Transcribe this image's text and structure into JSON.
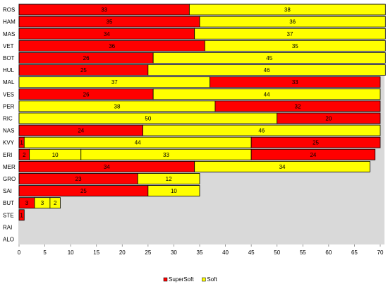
{
  "chart_data": {
    "type": "bar",
    "orientation": "horizontal",
    "stacked": true,
    "title": "",
    "xlabel": "",
    "ylabel": "",
    "xlim": [
      0,
      70
    ],
    "x_ticks": [
      0,
      5,
      10,
      15,
      20,
      25,
      30,
      35,
      40,
      45,
      50,
      55,
      60,
      65,
      70
    ],
    "grid": false,
    "legend_position": "bottom",
    "legend": [
      {
        "name": "SuperSoft",
        "color": "#ff0000"
      },
      {
        "name": "Soft",
        "color": "#ffff00"
      }
    ],
    "drivers": [
      {
        "name": "ROS",
        "stints": [
          {
            "compound": "SuperSoft",
            "laps": 33
          },
          {
            "compound": "Soft",
            "laps": 38
          }
        ]
      },
      {
        "name": "HAM",
        "stints": [
          {
            "compound": "SuperSoft",
            "laps": 35
          },
          {
            "compound": "Soft",
            "laps": 36
          }
        ]
      },
      {
        "name": "MAS",
        "stints": [
          {
            "compound": "SuperSoft",
            "laps": 34
          },
          {
            "compound": "Soft",
            "laps": 37
          }
        ]
      },
      {
        "name": "VET",
        "stints": [
          {
            "compound": "SuperSoft",
            "laps": 36
          },
          {
            "compound": "Soft",
            "laps": 35
          }
        ]
      },
      {
        "name": "BOT",
        "stints": [
          {
            "compound": "SuperSoft",
            "laps": 26
          },
          {
            "compound": "Soft",
            "laps": 45
          }
        ]
      },
      {
        "name": "HUL",
        "stints": [
          {
            "compound": "SuperSoft",
            "laps": 25
          },
          {
            "compound": "Soft",
            "laps": 46
          }
        ]
      },
      {
        "name": "MAL",
        "stints": [
          {
            "compound": "Soft",
            "laps": 37
          },
          {
            "compound": "SuperSoft",
            "laps": 33
          }
        ]
      },
      {
        "name": "VES",
        "stints": [
          {
            "compound": "SuperSoft",
            "laps": 26
          },
          {
            "compound": "Soft",
            "laps": 44
          }
        ]
      },
      {
        "name": "PER",
        "stints": [
          {
            "compound": "Soft",
            "laps": 38
          },
          {
            "compound": "SuperSoft",
            "laps": 32
          }
        ]
      },
      {
        "name": "RIC",
        "stints": [
          {
            "compound": "Soft",
            "laps": 50
          },
          {
            "compound": "SuperSoft",
            "laps": 20
          }
        ]
      },
      {
        "name": "NAS",
        "stints": [
          {
            "compound": "SuperSoft",
            "laps": 24
          },
          {
            "compound": "Soft",
            "laps": 46
          }
        ]
      },
      {
        "name": "KVY",
        "stints": [
          {
            "compound": "SuperSoft",
            "laps": 1
          },
          {
            "compound": "Soft",
            "laps": 44
          },
          {
            "compound": "SuperSoft",
            "laps": 25
          }
        ]
      },
      {
        "name": "ERI",
        "stints": [
          {
            "compound": "SuperSoft",
            "laps": 2
          },
          {
            "compound": "Soft",
            "laps": 10
          },
          {
            "compound": "Soft",
            "laps": 33
          },
          {
            "compound": "SuperSoft",
            "laps": 24
          }
        ]
      },
      {
        "name": "MER",
        "stints": [
          {
            "compound": "SuperSoft",
            "laps": 34
          },
          {
            "compound": "Soft",
            "laps": 34
          }
        ]
      },
      {
        "name": "GRO",
        "stints": [
          {
            "compound": "SuperSoft",
            "laps": 23
          },
          {
            "compound": "Soft",
            "laps": 12
          }
        ]
      },
      {
        "name": "SAI",
        "stints": [
          {
            "compound": "SuperSoft",
            "laps": 25
          },
          {
            "compound": "Soft",
            "laps": 10
          }
        ]
      },
      {
        "name": "BUT",
        "stints": [
          {
            "compound": "SuperSoft",
            "laps": 3
          },
          {
            "compound": "Soft",
            "laps": 3
          },
          {
            "compound": "Soft",
            "laps": 2
          }
        ]
      },
      {
        "name": "STE",
        "stints": [
          {
            "compound": "SuperSoft",
            "laps": 1
          }
        ]
      },
      {
        "name": "RAI",
        "stints": []
      },
      {
        "name": "ALO",
        "stints": []
      }
    ],
    "colors": {
      "SuperSoft": "#ff0000",
      "Soft": "#ffff00",
      "plot_background": "#d9d9d9",
      "bar_border": "#000000"
    }
  }
}
